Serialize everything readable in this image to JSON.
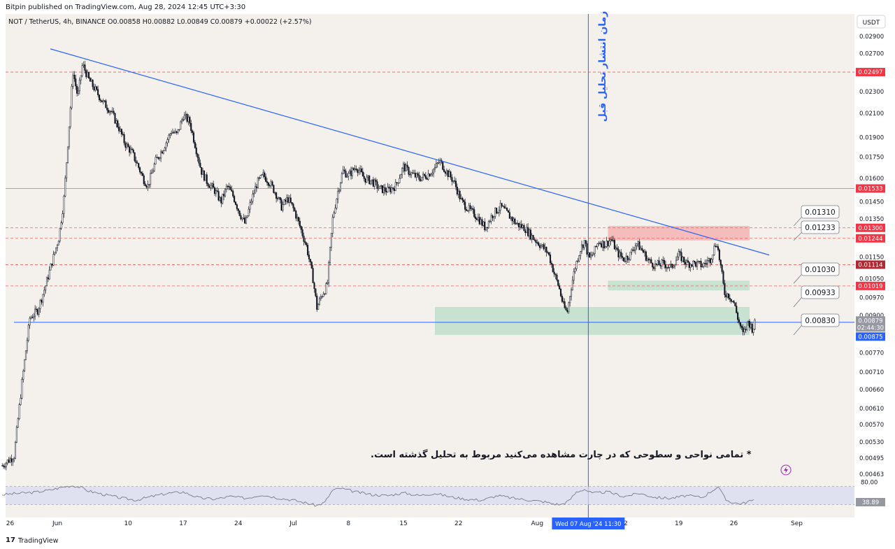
{
  "header": {
    "published": "Bitpin published on TradingView.com, Aug 28, 2024 12:45 UTC+3:30",
    "symbol_line": "NOT / TetherUS, 4h, BINANCE  O0.00858  H0.00882  L0.00849  C0.00879  +0.00022 (+2.57%)",
    "currency_button": "USDT"
  },
  "footer": {
    "logo": "17",
    "brand": "TradingView"
  },
  "colors": {
    "background": "#f4f1ec",
    "candle": "#131722",
    "trendline": "#2962ff",
    "resistance_solid": "#f06060",
    "resistance_dashed": "#f06060",
    "support_line": "#2962ff",
    "red_zone": "#f4a9a9",
    "green_zone": "#b9dcc8",
    "rsi_band": "#d6d9f2",
    "rsi_line": "#787b86",
    "label_red": "#f23645",
    "label_darkred": "#b22833",
    "label_blue": "#2962ff",
    "label_gray": "#9598a1"
  },
  "chart_data": {
    "type": "candlestick",
    "symbol": "NOT / TetherUS",
    "timeframe": "4h",
    "exchange": "BINANCE",
    "ohlc_last": {
      "open": 0.00858,
      "high": 0.00882,
      "low": 0.00849,
      "close": 0.00879,
      "change": "+0.00022 (+2.57%)"
    },
    "y_axis": {
      "scale": "log",
      "range": [
        0.0043,
        0.031
      ],
      "ticks": [
        "0.02900",
        "0.02700",
        "0.02500",
        "0.02300",
        "0.02100",
        "0.01900",
        "0.01750",
        "0.01600",
        "0.01450",
        "0.01350",
        "0.01250",
        "0.01150",
        "0.01050",
        "0.00970",
        "0.00900",
        "0.00830",
        "0.00770",
        "0.00710",
        "0.00660",
        "0.00610",
        "0.00570",
        "0.00530",
        "0.00495",
        "0.00463"
      ],
      "ticks_values": [
        0.029,
        0.027,
        0.025,
        0.023,
        0.021,
        0.019,
        0.0175,
        0.016,
        0.0145,
        0.0135,
        0.0125,
        0.0115,
        0.0105,
        0.0097,
        0.009,
        0.0083,
        0.0077,
        0.0071,
        0.0066,
        0.0061,
        0.0057,
        0.0053,
        0.00495,
        0.00463
      ]
    },
    "x_axis": {
      "ticks": [
        "26",
        "Jun",
        "10",
        "17",
        "24",
        "Jul",
        "8",
        "15",
        "22",
        "Aug",
        "12",
        "19",
        "26",
        "Sep"
      ],
      "ticks_days": [
        -6,
        0,
        9,
        16,
        23,
        30,
        37,
        44,
        51,
        61,
        72,
        79,
        86,
        94
      ],
      "crosshair_label": "Wed 07 Aug '24   11:30",
      "crosshair_day": 67.5
    },
    "series_keypoints": [
      [
        -7.0,
        0.0048
      ],
      [
        -5.5,
        0.005
      ],
      [
        -4.5,
        0.0068
      ],
      [
        -3.5,
        0.0089
      ],
      [
        -2.5,
        0.0092
      ],
      [
        -1.5,
        0.0102
      ],
      [
        -0.5,
        0.0115
      ],
      [
        0.2,
        0.0125
      ],
      [
        0.8,
        0.0145
      ],
      [
        1.5,
        0.02
      ],
      [
        2.0,
        0.025
      ],
      [
        2.6,
        0.0225
      ],
      [
        3.2,
        0.0258
      ],
      [
        4.0,
        0.0242
      ],
      [
        4.8,
        0.0232
      ],
      [
        5.8,
        0.022
      ],
      [
        6.8,
        0.0212
      ],
      [
        7.8,
        0.0198
      ],
      [
        8.6,
        0.0185
      ],
      [
        9.5,
        0.0178
      ],
      [
        10.3,
        0.0168
      ],
      [
        10.9,
        0.016
      ],
      [
        11.5,
        0.0155
      ],
      [
        12.5,
        0.0172
      ],
      [
        13.5,
        0.0182
      ],
      [
        14.5,
        0.0195
      ],
      [
        15.2,
        0.0192
      ],
      [
        16.0,
        0.0208
      ],
      [
        16.8,
        0.0203
      ],
      [
        17.6,
        0.0182
      ],
      [
        18.3,
        0.0165
      ],
      [
        19.0,
        0.0158
      ],
      [
        20.0,
        0.0152
      ],
      [
        20.8,
        0.0145
      ],
      [
        21.6,
        0.0155
      ],
      [
        22.4,
        0.0148
      ],
      [
        23.2,
        0.0138
      ],
      [
        23.9,
        0.0132
      ],
      [
        24.6,
        0.0145
      ],
      [
        25.4,
        0.0157
      ],
      [
        26.2,
        0.0162
      ],
      [
        27.0,
        0.0157
      ],
      [
        27.8,
        0.015
      ],
      [
        28.5,
        0.0142
      ],
      [
        29.3,
        0.0147
      ],
      [
        30.1,
        0.014
      ],
      [
        30.9,
        0.013
      ],
      [
        31.7,
        0.012
      ],
      [
        32.5,
        0.0105
      ],
      [
        33.0,
        0.0093
      ],
      [
        33.6,
        0.0098
      ],
      [
        34.3,
        0.0102
      ],
      [
        35.0,
        0.0135
      ],
      [
        35.6,
        0.015
      ],
      [
        36.3,
        0.0165
      ],
      [
        37.0,
        0.0162
      ],
      [
        38.0,
        0.0168
      ],
      [
        39.0,
        0.016
      ],
      [
        40.0,
        0.0158
      ],
      [
        41.0,
        0.0153
      ],
      [
        42.0,
        0.0152
      ],
      [
        43.0,
        0.0155
      ],
      [
        44.0,
        0.0168
      ],
      [
        45.0,
        0.0163
      ],
      [
        46.0,
        0.016
      ],
      [
        47.0,
        0.0162
      ],
      [
        48.0,
        0.0167
      ],
      [
        48.6,
        0.0172
      ],
      [
        49.4,
        0.0165
      ],
      [
        50.4,
        0.0158
      ],
      [
        51.4,
        0.0145
      ],
      [
        52.4,
        0.014
      ],
      [
        53.4,
        0.0136
      ],
      [
        54.4,
        0.013
      ],
      [
        55.4,
        0.0138
      ],
      [
        56.4,
        0.0142
      ],
      [
        57.4,
        0.0137
      ],
      [
        58.4,
        0.0132
      ],
      [
        59.4,
        0.013
      ],
      [
        60.4,
        0.0125
      ],
      [
        61.4,
        0.0121
      ],
      [
        62.4,
        0.0117
      ],
      [
        63.2,
        0.0107
      ],
      [
        63.8,
        0.0101
      ],
      [
        64.3,
        0.0094
      ],
      [
        64.8,
        0.0091
      ],
      [
        65.3,
        0.0101
      ],
      [
        65.8,
        0.011
      ],
      [
        66.4,
        0.0118
      ],
      [
        67.0,
        0.0123
      ],
      [
        67.6,
        0.0114
      ],
      [
        68.2,
        0.0117
      ],
      [
        68.8,
        0.0123
      ],
      [
        69.6,
        0.0121
      ],
      [
        70.4,
        0.0124
      ],
      [
        71.2,
        0.0117
      ],
      [
        72.0,
        0.0114
      ],
      [
        72.8,
        0.0116
      ],
      [
        73.6,
        0.0122
      ],
      [
        74.4,
        0.0118
      ],
      [
        75.2,
        0.0113
      ],
      [
        76.0,
        0.0111
      ],
      [
        77.0,
        0.0112
      ],
      [
        78.0,
        0.011
      ],
      [
        79.0,
        0.0116
      ],
      [
        80.0,
        0.0112
      ],
      [
        81.0,
        0.0112
      ],
      [
        82.0,
        0.0111
      ],
      [
        83.0,
        0.0114
      ],
      [
        83.8,
        0.0123
      ],
      [
        84.4,
        0.0109
      ],
      [
        84.8,
        0.0099
      ],
      [
        85.4,
        0.0098
      ],
      [
        86.0,
        0.0095
      ],
      [
        86.6,
        0.0088
      ],
      [
        87.2,
        0.0083
      ],
      [
        87.8,
        0.0088
      ],
      [
        88.4,
        0.0085
      ],
      [
        88.8,
        0.0088
      ]
    ],
    "drawings": {
      "trendline": {
        "start": {
          "day": 0.0,
          "price": 0.0272
        },
        "end": {
          "day": 90.5,
          "price": 0.0116
        }
      },
      "support_line": {
        "price": 0.00875
      },
      "horizontal_levels": [
        {
          "price": 0.02497,
          "label": "0.02497",
          "style": "dashed"
        },
        {
          "price": 0.01533,
          "label": "0.01533",
          "style": "solid"
        },
        {
          "price": 0.013,
          "label": "0.01300",
          "style": "dashed"
        },
        {
          "price": 0.01244,
          "label": "0.01244",
          "style": "dashed"
        },
        {
          "price": 0.01114,
          "label": "0.01114",
          "style": "dashed"
        },
        {
          "price": 0.01019,
          "label": "0.01019",
          "style": "dashed"
        }
      ],
      "zones": [
        {
          "color": "red",
          "day_from": 70.0,
          "day_to": 88.0,
          "price_low": 0.01233,
          "price_high": 0.0131
        },
        {
          "color": "green",
          "day_from": 70.0,
          "day_to": 88.0,
          "price_low": 0.01,
          "price_high": 0.01042
        },
        {
          "color": "green",
          "day_from": 48.0,
          "day_to": 88.0,
          "price_low": 0.0083,
          "price_high": 0.00933
        }
      ],
      "callouts": [
        {
          "text": "0.01310",
          "price": 0.0131
        },
        {
          "text": "0.01233",
          "price": 0.01233
        },
        {
          "text": "0.01030",
          "price": 0.0103
        },
        {
          "text": "0.00933",
          "price": 0.00933
        },
        {
          "text": "0.00830",
          "price": 0.0083
        }
      ],
      "vertical_line_text": "زمان انتشار تحلیل قبل",
      "note_text": "* تمامی نواحی و سطوحی که در چارت مشاهده می‌کنید مربوط به تحلیل گذشته است."
    },
    "price_axis_labels": [
      {
        "text": "0.02497",
        "price": 0.02497,
        "color": "red"
      },
      {
        "text": "0.01533",
        "price": 0.01533,
        "color": "red"
      },
      {
        "text": "0.01300",
        "price": 0.013,
        "color": "red"
      },
      {
        "text": "0.01244",
        "price": 0.01244,
        "color": "red"
      },
      {
        "text": "0.01114",
        "price": 0.01114,
        "color": "darkred"
      },
      {
        "text": "0.01019",
        "price": 0.01019,
        "color": "red"
      }
    ],
    "price_box": {
      "price": "0.00879",
      "countdown": "02:44:30",
      "support": "0.00875"
    },
    "rsi": {
      "upper_label": "80.00",
      "value_label": "38.89",
      "band": [
        30,
        70
      ],
      "range": [
        20,
        85
      ],
      "points": [
        [
          -7,
          52
        ],
        [
          -5,
          55
        ],
        [
          -3,
          57
        ],
        [
          -1,
          62
        ],
        [
          0,
          66
        ],
        [
          1,
          70
        ],
        [
          2,
          72
        ],
        [
          3,
          68
        ],
        [
          4,
          60
        ],
        [
          6,
          52
        ],
        [
          8,
          45
        ],
        [
          10,
          40
        ],
        [
          12,
          48
        ],
        [
          14,
          55
        ],
        [
          16,
          58
        ],
        [
          18,
          45
        ],
        [
          20,
          42
        ],
        [
          22,
          48
        ],
        [
          24,
          44
        ],
        [
          26,
          52
        ],
        [
          28,
          45
        ],
        [
          30,
          40
        ],
        [
          32,
          32
        ],
        [
          33,
          28
        ],
        [
          34,
          35
        ],
        [
          35,
          62
        ],
        [
          36,
          66
        ],
        [
          38,
          58
        ],
        [
          40,
          52
        ],
        [
          42,
          50
        ],
        [
          44,
          56
        ],
        [
          46,
          50
        ],
        [
          48,
          55
        ],
        [
          50,
          47
        ],
        [
          52,
          42
        ],
        [
          54,
          40
        ],
        [
          56,
          50
        ],
        [
          58,
          44
        ],
        [
          60,
          40
        ],
        [
          62,
          36
        ],
        [
          63,
          32
        ],
        [
          64,
          30
        ],
        [
          65,
          38
        ],
        [
          66,
          58
        ],
        [
          67,
          64
        ],
        [
          68,
          55
        ],
        [
          70,
          58
        ],
        [
          72,
          48
        ],
        [
          74,
          55
        ],
        [
          76,
          46
        ],
        [
          78,
          44
        ],
        [
          80,
          50
        ],
        [
          82,
          46
        ],
        [
          84,
          70
        ],
        [
          84.6,
          52
        ],
        [
          85,
          40
        ],
        [
          86,
          34
        ],
        [
          87,
          32
        ],
        [
          88,
          38
        ],
        [
          88.8,
          39
        ]
      ]
    }
  }
}
